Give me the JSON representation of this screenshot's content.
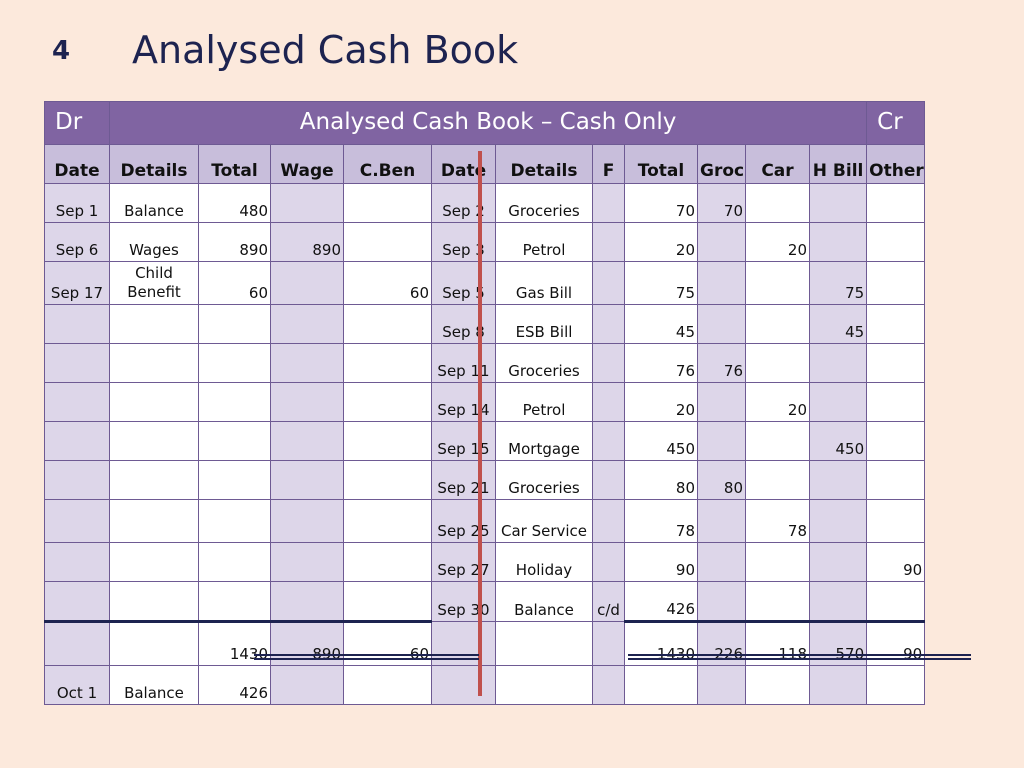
{
  "slide": {
    "number": "4",
    "title": "Analysed Cash Book"
  },
  "table": {
    "banner": {
      "dr": "Dr",
      "title": "Analysed Cash Book – Cash Only",
      "cr": "Cr"
    },
    "headers": [
      "Date",
      "Details",
      "Total",
      "Wage",
      "C.Ben",
      "Date",
      "Details",
      "F",
      "Total",
      "Groc",
      "Car",
      "H Bill",
      "Other"
    ],
    "rows": [
      [
        "Sep 1",
        "Balance",
        "480",
        "",
        "",
        "Sep 2",
        "Groceries",
        "",
        "70",
        "70",
        "",
        "",
        ""
      ],
      [
        "Sep 6",
        "Wages",
        "890",
        "890",
        "",
        "Sep 3",
        "Petrol",
        "",
        "20",
        "",
        "20",
        "",
        ""
      ],
      [
        "Sep 17",
        "Child Benefit",
        "60",
        "",
        "60",
        "Sep 5",
        "Gas Bill",
        "",
        "75",
        "",
        "",
        "75",
        ""
      ],
      [
        "",
        "",
        "",
        "",
        "",
        "Sep 8",
        "ESB Bill",
        "",
        "45",
        "",
        "",
        "45",
        ""
      ],
      [
        "",
        "",
        "",
        "",
        "",
        "Sep 11",
        "Groceries",
        "",
        "76",
        "76",
        "",
        "",
        ""
      ],
      [
        "",
        "",
        "",
        "",
        "",
        "Sep 14",
        "Petrol",
        "",
        "20",
        "",
        "20",
        "",
        ""
      ],
      [
        "",
        "",
        "",
        "",
        "",
        "Sep 15",
        "Mortgage",
        "",
        "450",
        "",
        "",
        "450",
        ""
      ],
      [
        "",
        "",
        "",
        "",
        "",
        "Sep 21",
        "Groceries",
        "",
        "80",
        "80",
        "",
        "",
        ""
      ],
      [
        "",
        "",
        "",
        "",
        "",
        "Sep 25",
        "Car Service",
        "",
        "78",
        "",
        "78",
        "",
        ""
      ],
      [
        "",
        "",
        "",
        "",
        "",
        "Sep 27",
        "Holiday",
        "",
        "90",
        "",
        "",
        "",
        "90"
      ],
      [
        "",
        "",
        "",
        "",
        "",
        "Sep 30",
        "Balance",
        "c/d",
        "426",
        "",
        "",
        "",
        ""
      ],
      [
        "",
        "",
        "1430",
        "890",
        "60",
        "",
        "",
        "",
        "1430",
        "226",
        "118",
        "570",
        "90"
      ],
      [
        "Oct 1",
        "Balance",
        "426",
        "",
        "",
        "",
        "",
        "",
        "",
        "",
        "",
        "",
        ""
      ]
    ],
    "child_benefit_line1": "Child",
    "child_benefit_line2": "Benefit"
  },
  "colors": {
    "background": "#fce9dc",
    "banner": "#8064a2",
    "header": "#c8bedb",
    "shaded_column": "#ddd6e9",
    "title_text": "#1d2350",
    "red_divider": "#c0504d"
  }
}
